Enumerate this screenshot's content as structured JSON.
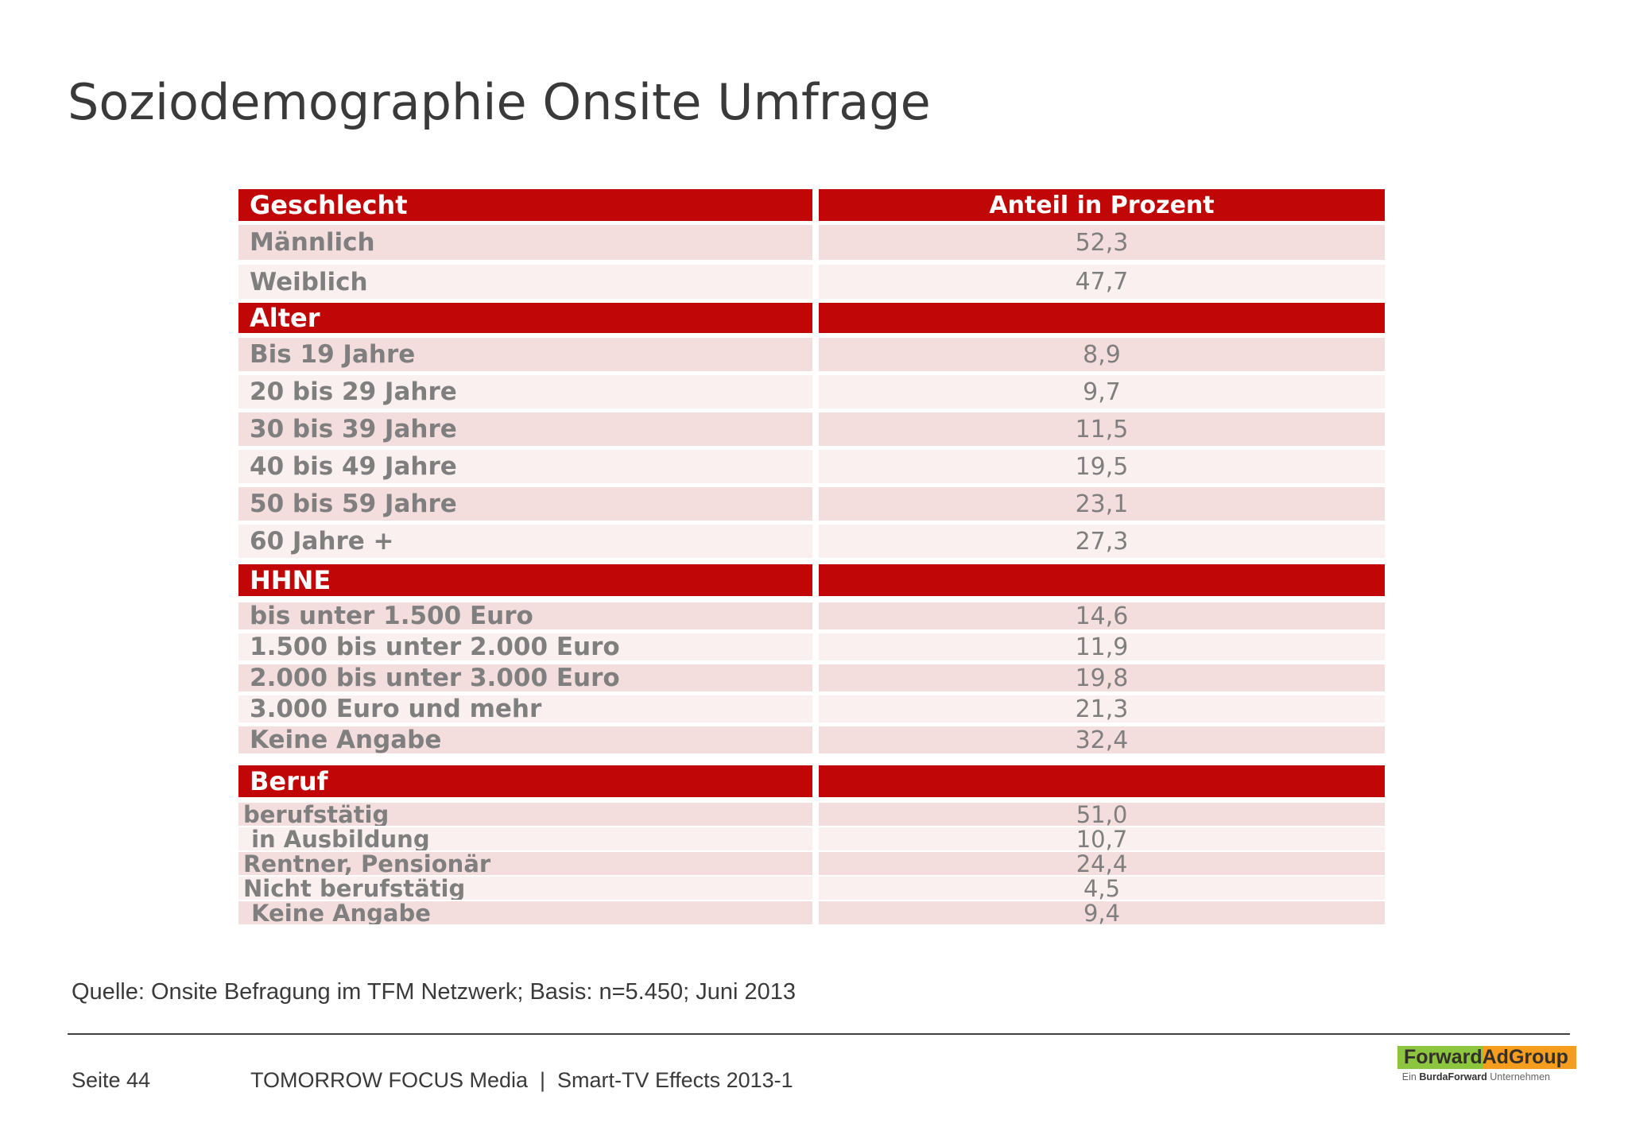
{
  "slide": {
    "title": "Soziodemographie Onsite Umfrage"
  },
  "table": {
    "columns": [
      "Geschlecht",
      "Anteil in Prozent"
    ],
    "sections": [
      {
        "header": "Geschlecht",
        "header_value": "Anteil in Prozent",
        "rows": [
          {
            "label": "Männlich",
            "value": "52,3"
          },
          {
            "label": "Weiblich",
            "value": "47,7"
          }
        ]
      },
      {
        "header": "Alter",
        "header_value": "",
        "rows": [
          {
            "label": "Bis 19 Jahre",
            "value": "8,9"
          },
          {
            "label": "20 bis 29 Jahre",
            "value": "9,7"
          },
          {
            "label": "30 bis 39 Jahre",
            "value": "11,5"
          },
          {
            "label": "40 bis 49 Jahre",
            "value": "19,5"
          },
          {
            "label": "50 bis 59 Jahre",
            "value": "23,1"
          },
          {
            "label": "60 Jahre +",
            "value": "27,3"
          }
        ]
      },
      {
        "header": "HHNE",
        "header_value": "",
        "rows": [
          {
            "label": "bis unter 1.500 Euro",
            "value": "14,6"
          },
          {
            "label": "1.500 bis unter 2.000 Euro",
            "value": "11,9"
          },
          {
            "label": "2.000 bis unter 3.000 Euro",
            "value": "19,8"
          },
          {
            "label": "3.000 Euro und mehr",
            "value": "21,3"
          },
          {
            "label": "Keine Angabe",
            "value": "32,4"
          }
        ]
      },
      {
        "header": "Beruf",
        "header_value": "",
        "rows": [
          {
            "label": "berufstätig",
            "value": "51,0"
          },
          {
            "label": " in Ausbildung",
            "value": "10,7"
          },
          {
            "label": "Rentner, Pensionär",
            "value": "24,4"
          },
          {
            "label": "Nicht berufstätig",
            "value": "4,5"
          },
          {
            "label": " Keine Angabe",
            "value": "9,4"
          }
        ]
      }
    ]
  },
  "source_note": "Quelle: Onsite Befragung im TFM Netzwerk; Basis: n=5.450; Juni 2013",
  "footer": {
    "page": "Seite 44",
    "doc": "TOMORROW FOCUS Media  |  Smart-TV Effects 2013-1"
  },
  "logo": {
    "brand_green": "Forward",
    "brand_orange": "AdGroup",
    "tagline_prefix": "Ein ",
    "tagline_bold": "BurdaForward",
    "tagline_suffix": " Unternehmen"
  },
  "colors": {
    "header_red": "#c00606",
    "row_pink_dark": "#f3dedd",
    "row_pink_light": "#faf0ef",
    "label_gray": "#7f7f7f",
    "logo_green": "#8cc63f",
    "logo_orange": "#f79d1e"
  }
}
